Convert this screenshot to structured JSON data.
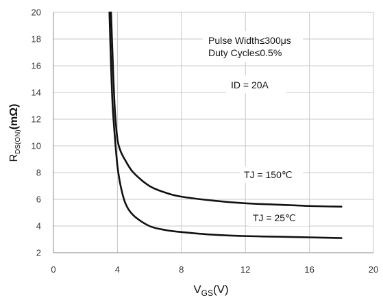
{
  "chart_data": {
    "type": "line",
    "title": "",
    "xlabel": {
      "main": "V",
      "sub": "GS",
      "unit": "(V)"
    },
    "ylabel": {
      "main": "R",
      "sub": "DS(ON)",
      "unit": "(mΩ)"
    },
    "xlim": [
      0,
      20
    ],
    "ylim": [
      2,
      20
    ],
    "xticks": [
      "0",
      "4",
      "8",
      "12",
      "16",
      "20"
    ],
    "yticks": [
      "2",
      "4",
      "6",
      "8",
      "10",
      "12",
      "14",
      "16",
      "18",
      "20"
    ],
    "grid": true,
    "series": [
      {
        "name": "TJ = 150℃",
        "points": [
          [
            3.6,
            20
          ],
          [
            3.75,
            15
          ],
          [
            3.85,
            12.5
          ],
          [
            4.0,
            10.5
          ],
          [
            4.2,
            9.6
          ],
          [
            4.5,
            8.9
          ],
          [
            5.0,
            8.0
          ],
          [
            6.0,
            7.0
          ],
          [
            7.0,
            6.5
          ],
          [
            8.0,
            6.2
          ],
          [
            10.0,
            5.9
          ],
          [
            12.0,
            5.7
          ],
          [
            14.0,
            5.6
          ],
          [
            16.0,
            5.5
          ],
          [
            18.0,
            5.45
          ]
        ]
      },
      {
        "name": "TJ = 25℃",
        "points": [
          [
            3.5,
            20
          ],
          [
            3.6,
            16
          ],
          [
            3.7,
            13
          ],
          [
            3.85,
            10.5
          ],
          [
            4.0,
            8.5
          ],
          [
            4.2,
            7.0
          ],
          [
            4.5,
            5.7
          ],
          [
            5.0,
            4.8
          ],
          [
            6.0,
            4.0
          ],
          [
            7.0,
            3.7
          ],
          [
            8.0,
            3.55
          ],
          [
            10.0,
            3.35
          ],
          [
            12.0,
            3.25
          ],
          [
            14.0,
            3.2
          ],
          [
            16.0,
            3.15
          ],
          [
            18.0,
            3.1
          ]
        ]
      }
    ],
    "annotations": {
      "pulse_width": "Pulse Width≤300μs",
      "duty_cycle": "Duty Cycle≤0.5%",
      "id_label": "ID = 20A",
      "tj150_label": "TJ = 150℃",
      "tj25_label": "TJ = 25℃"
    },
    "colors": {
      "line": "#111111",
      "grid": "#c8c8c8",
      "axis": "#888888"
    }
  }
}
